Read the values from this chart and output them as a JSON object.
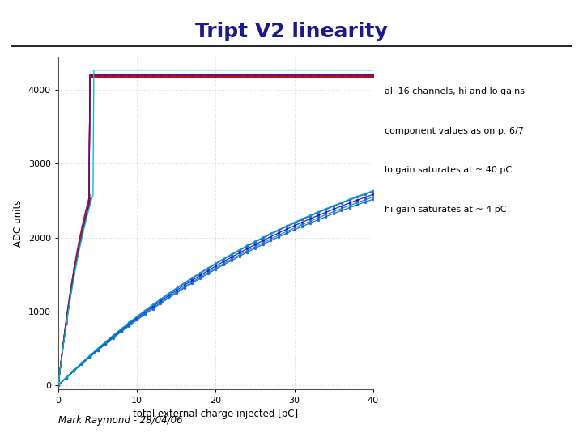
{
  "title": "Tript V2 linearity",
  "title_color": "#1a1a8c",
  "title_fontsize": 18,
  "title_fontweight": "bold",
  "xlabel": "total external charge injected [pC]",
  "ylabel": "ADC units",
  "xlim": [
    0,
    40
  ],
  "ylim": [
    -50,
    4450
  ],
  "yticks": [
    0,
    1000,
    2000,
    3000,
    4000
  ],
  "xticks": [
    0,
    10,
    20,
    30,
    40
  ],
  "annotations": [
    "all 16 channels, hi and lo gains",
    "component values as on p. 6/7",
    "lo gain saturates at ~ 40 pC",
    "hi gain saturates at ~ 4 pC"
  ],
  "background_color": "#ffffff",
  "grid_color": "#d0d0d0",
  "footer_text": "Mark Raymond - 28/04/06",
  "hi_colors": [
    "#cc0000",
    "#aa0033",
    "#990077",
    "#7700aa",
    "#880000",
    "#bb0044",
    "#993300",
    "#660099"
  ],
  "lo_colors": [
    "#0000dd",
    "#0033cc",
    "#0055bb",
    "#0077cc",
    "#0099cc",
    "#2200bb",
    "#0044dd",
    "#0066bb"
  ],
  "cyan_color": "#00bbbb"
}
